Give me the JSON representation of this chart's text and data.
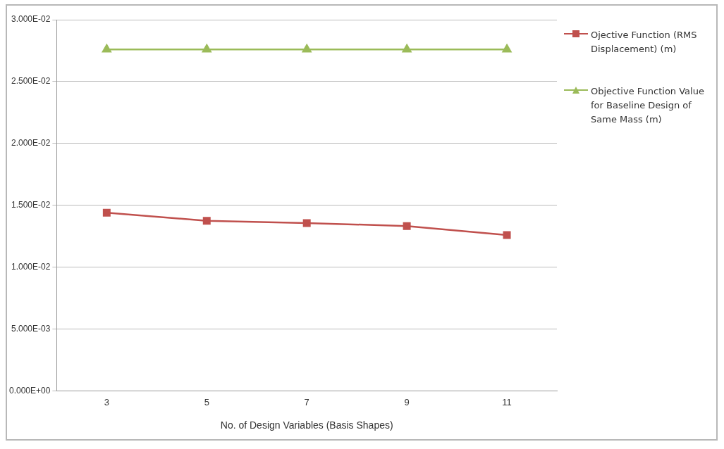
{
  "chart_data": {
    "type": "line",
    "xlabel": "No. of Design Variables (Basis Shapes)",
    "categories": [
      "3",
      "5",
      "7",
      "9",
      "11"
    ],
    "series": [
      {
        "name": "Ojective Function (RMS Displacement) (m)",
        "color": "#c0504d",
        "marker": "square",
        "values": [
          0.0144,
          0.01375,
          0.01357,
          0.01333,
          0.0126
        ]
      },
      {
        "name": "Objective Function Value for Baseline Design of Same Mass (m)",
        "color": "#9bbb59",
        "marker": "triangle",
        "values": [
          0.0276,
          0.0276,
          0.0276,
          0.0276,
          0.0276
        ]
      }
    ],
    "ylim": [
      0,
      0.03
    ],
    "yticks": [
      {
        "value": 0,
        "label": "0.000E+00"
      },
      {
        "value": 0.005,
        "label": "5.000E-03"
      },
      {
        "value": 0.01,
        "label": "1.000E-02"
      },
      {
        "value": 0.015,
        "label": "1.500E-02"
      },
      {
        "value": 0.02,
        "label": "2.000E-02"
      },
      {
        "value": 0.025,
        "label": "2.500E-02"
      },
      {
        "value": 0.03,
        "label": "3.000E-02"
      }
    ],
    "grid": "y",
    "legend": "right"
  }
}
